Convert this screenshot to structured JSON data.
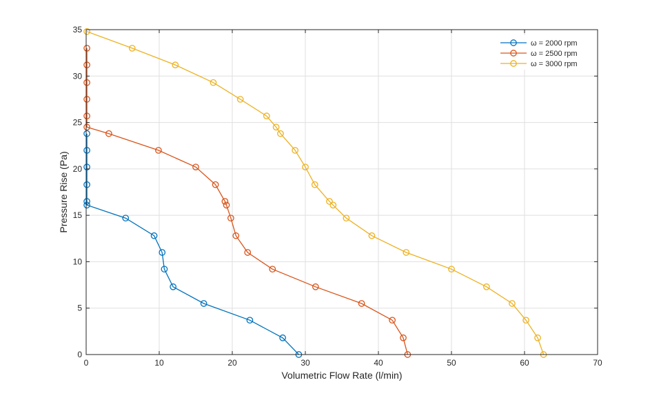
{
  "chart_data": {
    "type": "line",
    "xlabel": "Volumetric Flow Rate (l/min)",
    "ylabel": "Pressure Rise (Pa)",
    "xlim": [
      0,
      70
    ],
    "ylim": [
      0,
      35
    ],
    "xticks": [
      0,
      10,
      20,
      30,
      40,
      50,
      60,
      70
    ],
    "yticks": [
      0,
      5,
      10,
      15,
      20,
      25,
      30,
      35
    ],
    "grid": true,
    "legend_location": "top-right",
    "marker": "open-circle",
    "series": [
      {
        "name": "ω  =  2000  rpm",
        "color": "#0072BD",
        "x": [
          0.1,
          0.1,
          0.1,
          0.1,
          0.1,
          0.1,
          5.4,
          9.3,
          10.4,
          10.7,
          11.9,
          16.1,
          22.4,
          26.9,
          29.1
        ],
        "y": [
          23.8,
          22.0,
          20.2,
          18.3,
          16.5,
          16.1,
          14.7,
          12.8,
          11.0,
          9.2,
          7.3,
          5.5,
          3.7,
          1.8,
          0.0
        ]
      },
      {
        "name": "ω  =  2500  rpm",
        "color": "#D95319",
        "x": [
          0.1,
          0.1,
          0.1,
          0.1,
          0.1,
          0.1,
          3.1,
          9.9,
          15.0,
          17.7,
          19.0,
          19.2,
          19.8,
          20.5,
          22.1,
          25.5,
          31.4,
          37.7,
          41.9,
          43.4,
          44.0
        ],
        "y": [
          33.0,
          31.2,
          29.3,
          27.5,
          25.7,
          24.5,
          23.8,
          22.0,
          20.2,
          18.3,
          16.5,
          16.1,
          14.7,
          12.8,
          11.0,
          9.2,
          7.3,
          5.5,
          3.7,
          1.8,
          0.0
        ]
      },
      {
        "name": "ω  =  3000  rpm",
        "color": "#EDB120",
        "x": [
          0.1,
          6.3,
          12.2,
          17.4,
          21.1,
          24.7,
          26.0,
          26.6,
          28.6,
          30.0,
          31.3,
          33.3,
          33.8,
          35.6,
          39.1,
          43.8,
          50.0,
          54.8,
          58.3,
          60.2,
          61.8,
          62.6
        ],
        "y": [
          34.8,
          33.0,
          31.2,
          29.3,
          27.5,
          25.7,
          24.5,
          23.8,
          22.0,
          20.2,
          18.3,
          16.5,
          16.1,
          14.7,
          12.8,
          11.0,
          9.2,
          7.3,
          5.5,
          3.7,
          1.8,
          0.0
        ]
      }
    ]
  }
}
